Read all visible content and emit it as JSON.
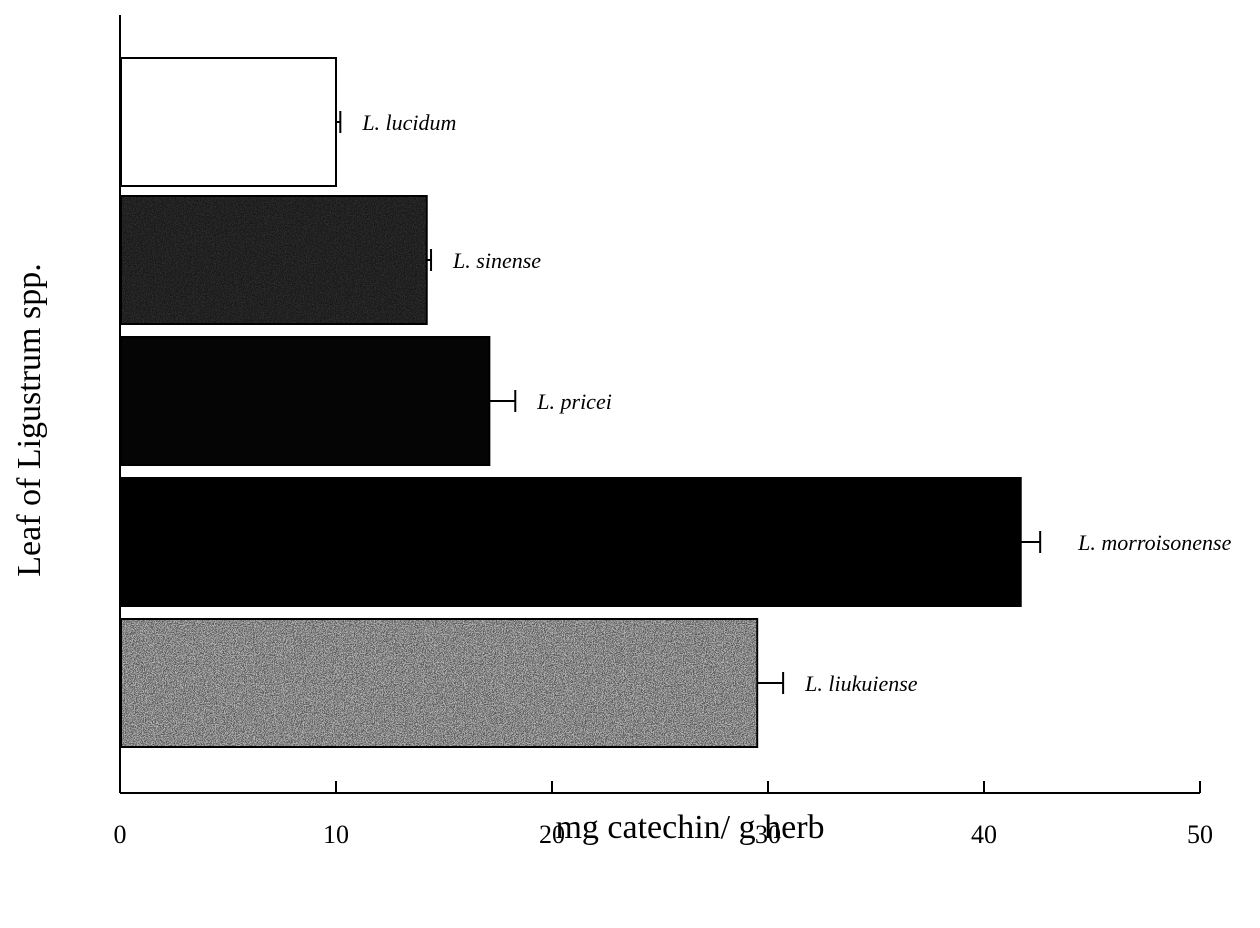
{
  "chart_data": {
    "type": "bar",
    "orientation": "horizontal",
    "categories": [
      "L. lucidum",
      "L. sinense",
      "L. pricei",
      "L. morroisonense",
      "L. liukuiense"
    ],
    "values": [
      10.0,
      14.2,
      17.1,
      41.7,
      29.5
    ],
    "errors": [
      0.2,
      0.2,
      1.2,
      0.9,
      1.2
    ],
    "fills": [
      "#ffffff",
      "#1c1c1c",
      "#050505",
      "#000000",
      "#8a8a8a"
    ],
    "xlabel": "mg catechin/ g herb",
    "ylabel": "Leaf of Ligustrum spp.",
    "xlim": [
      0,
      50
    ],
    "xticks": [
      0,
      10,
      20,
      30,
      40,
      50
    ],
    "grid": false
  }
}
